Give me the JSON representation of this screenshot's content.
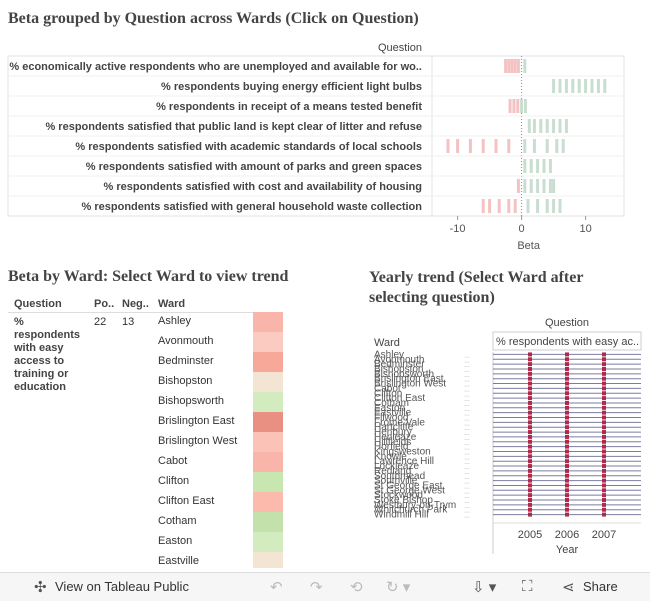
{
  "titles": {
    "main": "Beta grouped by Question across Wards (Click on Question)",
    "ward": "Beta by Ward: Select Ward to view trend",
    "trend": "Yearly trend (Select Ward after selecting question)"
  },
  "colors": {
    "positive": "#c9ddd0",
    "negative": "#f4c2c2",
    "grid": "#e3e3e3"
  },
  "chart_data": [
    {
      "type": "scatter",
      "title": "Beta grouped by Question across Wards (Click on Question)",
      "column_header": "Question",
      "xlabel": "Beta",
      "xlim": [
        -14,
        16
      ],
      "xticks": [
        -10,
        0,
        10
      ],
      "categories": [
        "% economically active respondents who are unemployed and available for wo..",
        "% respondents buying energy efficient light bulbs",
        "% respondents in receipt of a means tested benefit",
        "% respondents satisfied that public land is kept clear of litter and refuse",
        "% respondents satisfied with academic standards of local schools",
        "% respondents satisfied with amount of parks and green spaces",
        "% respondents satisfied with cost and availability of housing",
        "% respondents satisfied with general household waste collection"
      ],
      "series": [
        {
          "values": [
            [
              -2.5,
              -2,
              -1.5,
              -1,
              -0.5,
              0.5
            ],
            [
              5,
              6,
              7,
              8,
              9,
              10,
              11,
              12,
              13
            ],
            [
              -1.8,
              -1.2,
              -0.6,
              0,
              0.6
            ],
            [
              1.2,
              2,
              3,
              4,
              5,
              6,
              7
            ],
            [
              -11.5,
              -10,
              -8,
              -6,
              -4,
              -2,
              0.5,
              2,
              4,
              5.5,
              6.5
            ],
            [
              0.5,
              1.5,
              2.5,
              3.5,
              4.5
            ],
            [
              -0.5,
              0.5,
              1.5,
              2.5,
              3.5,
              4.5,
              5
            ],
            [
              -6,
              -5,
              -3.5,
              -2,
              -1,
              1,
              2.5,
              4,
              5,
              6
            ]
          ]
        }
      ]
    },
    {
      "type": "heatmap",
      "title": "Beta by Ward: Select Ward to view trend",
      "headers": {
        "question": "Question",
        "pos": "Po..",
        "neg": "Neg..",
        "ward": "Ward"
      },
      "question": "% respondents with easy access to training or education",
      "pos": "22",
      "neg": "13",
      "wards": [
        "Ashley",
        "Avonmouth",
        "Bedminster",
        "Bishopston",
        "Bishopsworth",
        "Brislington East",
        "Brislington West",
        "Cabot",
        "Clifton",
        "Clifton East",
        "Cotham",
        "Easton",
        "Eastville"
      ],
      "cell_colors": [
        "#f9b5a9",
        "#fbcbc2",
        "#f7a898",
        "#f3e4d4",
        "#d3ecbf",
        "#ea9082",
        "#fbc3b8",
        "#f9b5a9",
        "#c7e6b0",
        "#fbbaac",
        "#c2e1ab",
        "#d3ecbf",
        "#f3e4d4"
      ]
    },
    {
      "type": "line",
      "title": "Yearly trend (Select Ward after selecting question)",
      "header_left": "Ward",
      "header_question": "Question",
      "header_value": "% respondents with easy ac..",
      "xlabel": "Year",
      "x": [
        "2005",
        "2006",
        "2007"
      ],
      "ward_labels": [
        "Ashley",
        "Avonmouth",
        "Bedminster",
        "Bishopston",
        "Bishopsworth",
        "Brislington East",
        "Brislington West",
        "Cabot",
        "Clifton",
        "Clifton East",
        "Cotham",
        "Easton",
        "Eastville",
        "Filwood",
        "Frome Vale",
        "Hartcliffe",
        "Henbury",
        "Henleaze",
        "Hillfields",
        "Horfield",
        "Kingsweston",
        "Knowle",
        "Lawrence Hill",
        "Lockleaze",
        "Redland",
        "Southmead",
        "Southville",
        "St George East",
        "St George West",
        "Stockwood",
        "Stoke Bishop",
        "Westbury-on-Trym",
        "Whitchurch Park",
        "Windmill Hill"
      ]
    }
  ],
  "footer": {
    "view_label": "View on Tableau Public",
    "share_label": "Share",
    "icons": [
      "tableau-icon",
      "undo-icon",
      "redo-icon",
      "revert-icon",
      "pause-icon",
      "download-icon",
      "fullscreen-icon",
      "share-icon"
    ]
  }
}
